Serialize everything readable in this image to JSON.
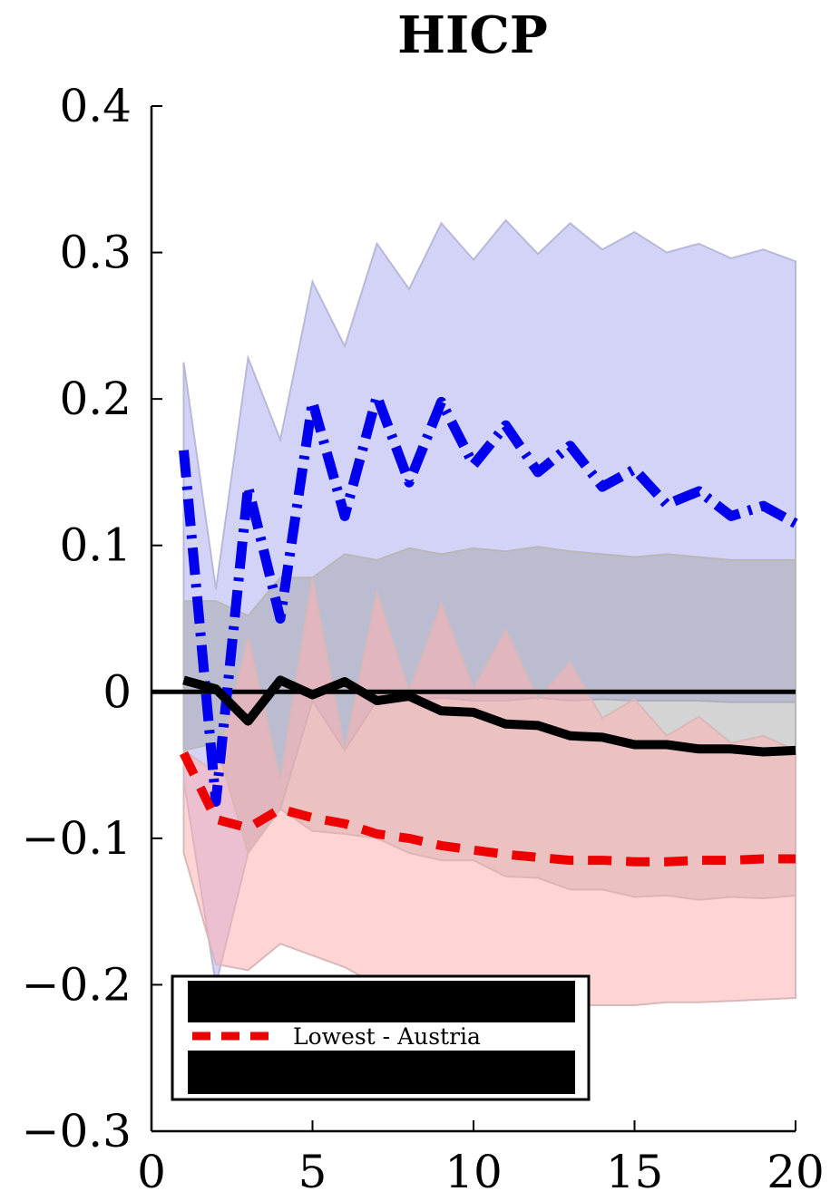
{
  "chart_data": {
    "type": "line",
    "title": "HICP",
    "xlabel": "",
    "ylabel": "",
    "xlim": [
      0,
      20
    ],
    "ylim": [
      -0.3,
      0.4
    ],
    "xticks": [
      0,
      5,
      10,
      15,
      20
    ],
    "xtick_labels": [
      "0",
      "5",
      "10",
      "15",
      "20"
    ],
    "yticks": [
      -0.3,
      -0.2,
      -0.1,
      0,
      0.1,
      0.2,
      0.3,
      0.4
    ],
    "ytick_labels": [
      "−0.3",
      "−0.2",
      "−0.1",
      "0",
      "0.1",
      "0.2",
      "0.3",
      "0.4"
    ],
    "grid": false,
    "legend_position": "bottom-left",
    "x": [
      1,
      2,
      3,
      4,
      5,
      6,
      7,
      8,
      9,
      10,
      11,
      12,
      13,
      14,
      15,
      16,
      17,
      18,
      19,
      20
    ],
    "series": [
      {
        "name": "",
        "style": "dash-dot",
        "color": "#0000ee",
        "values": [
          0.165,
          -0.075,
          0.14,
          0.05,
          0.198,
          0.12,
          0.202,
          0.143,
          0.198,
          0.155,
          0.182,
          0.15,
          0.168,
          0.14,
          0.152,
          0.128,
          0.137,
          0.12,
          0.127,
          0.115
        ]
      },
      {
        "name": "",
        "style": "solid",
        "color": "#000000",
        "values": [
          0.008,
          0.002,
          -0.02,
          0.008,
          -0.002,
          0.007,
          -0.006,
          -0.003,
          -0.013,
          -0.014,
          -0.022,
          -0.023,
          -0.03,
          -0.031,
          -0.036,
          -0.036,
          -0.039,
          -0.039,
          -0.041,
          -0.04
        ]
      },
      {
        "name": "Lowest - Austria",
        "style": "dashed",
        "color": "#ee0000",
        "values": [
          -0.042,
          -0.087,
          -0.093,
          -0.08,
          -0.086,
          -0.09,
          -0.097,
          -0.1,
          -0.105,
          -0.108,
          -0.111,
          -0.113,
          -0.115,
          -0.115,
          -0.116,
          -0.116,
          -0.115,
          -0.115,
          -0.114,
          -0.114
        ]
      }
    ],
    "bands": [
      {
        "for_series": 0,
        "color": "#c4c4f6",
        "opacity": 0.75,
        "upper": [
          0.225,
          0.07,
          0.228,
          0.172,
          0.28,
          0.236,
          0.306,
          0.275,
          0.32,
          0.295,
          0.322,
          0.299,
          0.32,
          0.302,
          0.314,
          0.3,
          0.306,
          0.296,
          0.302,
          0.294
        ],
        "lower": [
          -0.06,
          -0.2,
          -0.11,
          -0.08,
          -0.006,
          -0.04,
          -0.006,
          -0.006,
          -0.004,
          -0.006,
          -0.006,
          -0.004,
          -0.006,
          -0.005,
          -0.006,
          -0.006,
          -0.006,
          -0.007,
          -0.007,
          -0.007
        ]
      },
      {
        "for_series": 1,
        "color": "#a0a0a0",
        "opacity": 0.45,
        "upper": [
          0.062,
          0.062,
          0.052,
          0.078,
          0.078,
          0.094,
          0.09,
          0.098,
          0.094,
          0.098,
          0.096,
          0.099,
          0.096,
          0.094,
          0.092,
          0.094,
          0.092,
          0.09,
          0.09,
          0.09
        ],
        "lower": [
          -0.04,
          -0.035,
          -0.11,
          -0.08,
          -0.095,
          -0.097,
          -0.1,
          -0.11,
          -0.115,
          -0.115,
          -0.126,
          -0.127,
          -0.135,
          -0.135,
          -0.14,
          -0.139,
          -0.142,
          -0.14,
          -0.141,
          -0.139
        ]
      },
      {
        "for_series": 2,
        "color": "#ffb0b0",
        "opacity": 0.55,
        "upper": [
          -0.04,
          -0.055,
          0.037,
          -0.06,
          0.078,
          -0.04,
          0.068,
          0.0,
          0.06,
          0.002,
          0.042,
          -0.005,
          0.02,
          -0.018,
          -0.005,
          -0.03,
          -0.017,
          -0.035,
          -0.03,
          -0.04
        ],
        "lower": [
          -0.11,
          -0.186,
          -0.19,
          -0.172,
          -0.18,
          -0.188,
          -0.2,
          -0.205,
          -0.208,
          -0.21,
          -0.212,
          -0.214,
          -0.214,
          -0.214,
          -0.214,
          -0.212,
          -0.212,
          -0.211,
          -0.21,
          -0.209
        ]
      }
    ],
    "hline": 0,
    "legend": [
      "",
      "Lowest - Austria",
      ""
    ]
  },
  "colors": {
    "axis": "#000000",
    "legend_border": "#000000",
    "redacted_block": "#000000"
  }
}
